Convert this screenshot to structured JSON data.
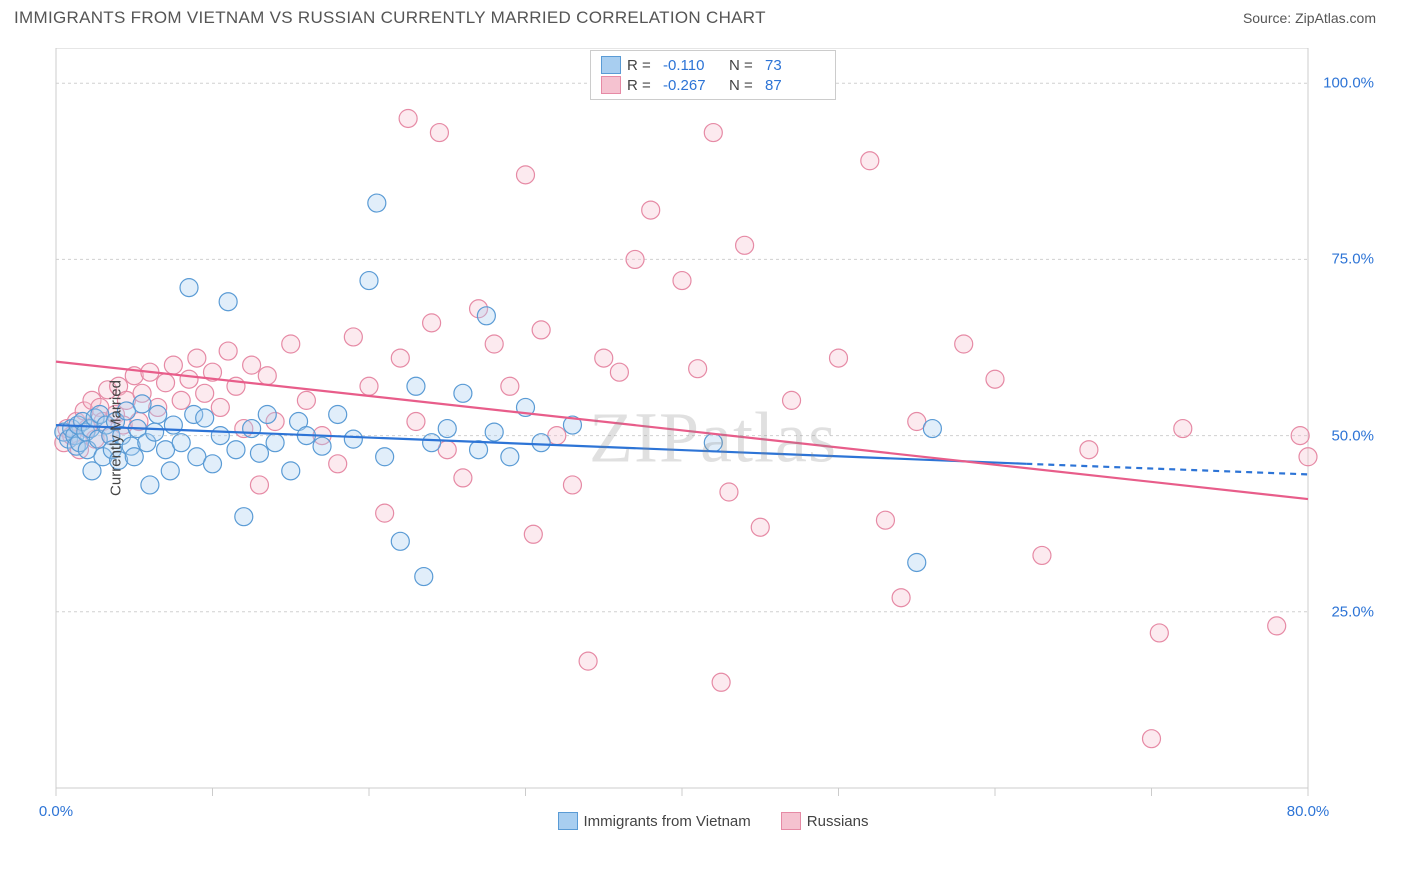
{
  "title": "IMMIGRANTS FROM VIETNAM VS RUSSIAN CURRENTLY MARRIED CORRELATION CHART",
  "source": "Source: ZipAtlas.com",
  "watermark": "ZIPatlas",
  "chart": {
    "type": "scatter",
    "ylabel": "Currently Married",
    "xlim": [
      0,
      80
    ],
    "ylim": [
      0,
      105
    ],
    "x_ticks": [
      0,
      10,
      20,
      30,
      40,
      50,
      60,
      70,
      80
    ],
    "y_ticks": [
      25,
      50,
      75,
      100
    ],
    "x_tick_labels": {
      "0": "0.0%",
      "80": "80.0%"
    },
    "y_tick_labels": {
      "25": "25.0%",
      "50": "50.0%",
      "75": "75.0%",
      "100": "100.0%"
    },
    "grid_color": "#d0d0d0",
    "border_color": "#cccccc",
    "marker_radius": 9,
    "marker_stroke_width": 1.2,
    "marker_fill_opacity": 0.35,
    "series": [
      {
        "id": "vietnam",
        "label": "Immigrants from Vietnam",
        "color_stroke": "#5a9bd5",
        "color_fill": "#a8cef0",
        "R_label": "R =",
        "R": "-0.110",
        "N_label": "N =",
        "N": "73",
        "trend": {
          "x1": 0,
          "y1": 51.5,
          "x2": 62,
          "y2": 46,
          "x2_dash": 80,
          "y2_dash": 44.5,
          "stroke": "#2d74d6",
          "width": 2.2
        },
        "points": [
          [
            0.5,
            50.5
          ],
          [
            0.8,
            49.5
          ],
          [
            1,
            51
          ],
          [
            1.2,
            50
          ],
          [
            1.3,
            48.5
          ],
          [
            1.4,
            51.5
          ],
          [
            1.5,
            49
          ],
          [
            1.7,
            52
          ],
          [
            1.9,
            50.5
          ],
          [
            2,
            48
          ],
          [
            2.2,
            51
          ],
          [
            2.3,
            45
          ],
          [
            2.5,
            52.5
          ],
          [
            2.7,
            49.5
          ],
          [
            2.8,
            53
          ],
          [
            3,
            47
          ],
          [
            3.2,
            51.5
          ],
          [
            3.5,
            50
          ],
          [
            3.6,
            48
          ],
          [
            3.8,
            52
          ],
          [
            4,
            46.5
          ],
          [
            4.2,
            50
          ],
          [
            4.5,
            53.5
          ],
          [
            4.8,
            48.5
          ],
          [
            5,
            47
          ],
          [
            5.2,
            51
          ],
          [
            5.5,
            54.5
          ],
          [
            5.8,
            49
          ],
          [
            6,
            43
          ],
          [
            6.3,
            50.5
          ],
          [
            6.5,
            53
          ],
          [
            7,
            48
          ],
          [
            7.3,
            45
          ],
          [
            7.5,
            51.5
          ],
          [
            8,
            49
          ],
          [
            8.5,
            71
          ],
          [
            8.8,
            53
          ],
          [
            9,
            47
          ],
          [
            9.5,
            52.5
          ],
          [
            10,
            46
          ],
          [
            10.5,
            50
          ],
          [
            11,
            69
          ],
          [
            11.5,
            48
          ],
          [
            12,
            38.5
          ],
          [
            12.5,
            51
          ],
          [
            13,
            47.5
          ],
          [
            13.5,
            53
          ],
          [
            14,
            49
          ],
          [
            15,
            45
          ],
          [
            15.5,
            52
          ],
          [
            16,
            50
          ],
          [
            17,
            48.5
          ],
          [
            18,
            53
          ],
          [
            19,
            49.5
          ],
          [
            20,
            72
          ],
          [
            20.5,
            83
          ],
          [
            21,
            47
          ],
          [
            22,
            35
          ],
          [
            23,
            57
          ],
          [
            23.5,
            30
          ],
          [
            24,
            49
          ],
          [
            25,
            51
          ],
          [
            26,
            56
          ],
          [
            27,
            48
          ],
          [
            27.5,
            67
          ],
          [
            28,
            50.5
          ],
          [
            29,
            47
          ],
          [
            30,
            54
          ],
          [
            31,
            49
          ],
          [
            33,
            51.5
          ],
          [
            42,
            49
          ],
          [
            55,
            32
          ],
          [
            56,
            51
          ]
        ]
      },
      {
        "id": "russians",
        "label": "Russians",
        "color_stroke": "#e68aa5",
        "color_fill": "#f5c2d0",
        "R_label": "R =",
        "R": "-0.267",
        "N_label": "N =",
        "N": "87",
        "trend": {
          "x1": 0,
          "y1": 60.5,
          "x2": 80,
          "y2": 41,
          "stroke": "#e85d8a",
          "width": 2.2
        },
        "points": [
          [
            0.5,
            49
          ],
          [
            0.7,
            51
          ],
          [
            1,
            50
          ],
          [
            1.3,
            52
          ],
          [
            1.5,
            48
          ],
          [
            1.8,
            53.5
          ],
          [
            2,
            51
          ],
          [
            2.3,
            55
          ],
          [
            2.5,
            49.5
          ],
          [
            2.8,
            54
          ],
          [
            3,
            52
          ],
          [
            3.3,
            56.5
          ],
          [
            3.5,
            50
          ],
          [
            3.8,
            53
          ],
          [
            4,
            57
          ],
          [
            4.3,
            51.5
          ],
          [
            4.5,
            55
          ],
          [
            5,
            58.5
          ],
          [
            5.3,
            52
          ],
          [
            5.5,
            56
          ],
          [
            6,
            59
          ],
          [
            6.5,
            54
          ],
          [
            7,
            57.5
          ],
          [
            7.5,
            60
          ],
          [
            8,
            55
          ],
          [
            8.5,
            58
          ],
          [
            9,
            61
          ],
          [
            9.5,
            56
          ],
          [
            10,
            59
          ],
          [
            10.5,
            54
          ],
          [
            11,
            62
          ],
          [
            11.5,
            57
          ],
          [
            12,
            51
          ],
          [
            12.5,
            60
          ],
          [
            13,
            43
          ],
          [
            13.5,
            58.5
          ],
          [
            14,
            52
          ],
          [
            15,
            63
          ],
          [
            16,
            55
          ],
          [
            17,
            50
          ],
          [
            18,
            46
          ],
          [
            19,
            64
          ],
          [
            20,
            57
          ],
          [
            21,
            39
          ],
          [
            22,
            61
          ],
          [
            22.5,
            95
          ],
          [
            23,
            52
          ],
          [
            24,
            66
          ],
          [
            24.5,
            93
          ],
          [
            25,
            48
          ],
          [
            26,
            44
          ],
          [
            27,
            68
          ],
          [
            28,
            63
          ],
          [
            29,
            57
          ],
          [
            30,
            87
          ],
          [
            30.5,
            36
          ],
          [
            31,
            65
          ],
          [
            32,
            50
          ],
          [
            33,
            43
          ],
          [
            34,
            18
          ],
          [
            35,
            61
          ],
          [
            36,
            59
          ],
          [
            37,
            75
          ],
          [
            38,
            82
          ],
          [
            40,
            72
          ],
          [
            41,
            59.5
          ],
          [
            42,
            93
          ],
          [
            42.5,
            15
          ],
          [
            43,
            42
          ],
          [
            44,
            77
          ],
          [
            45,
            37
          ],
          [
            47,
            55
          ],
          [
            50,
            61
          ],
          [
            52,
            89
          ],
          [
            53,
            38
          ],
          [
            54,
            27
          ],
          [
            55,
            52
          ],
          [
            58,
            63
          ],
          [
            60,
            58
          ],
          [
            63,
            33
          ],
          [
            66,
            48
          ],
          [
            70,
            7
          ],
          [
            70.5,
            22
          ],
          [
            72,
            51
          ],
          [
            78,
            23
          ],
          [
            79.5,
            50
          ],
          [
            80,
            47
          ]
        ]
      }
    ]
  }
}
